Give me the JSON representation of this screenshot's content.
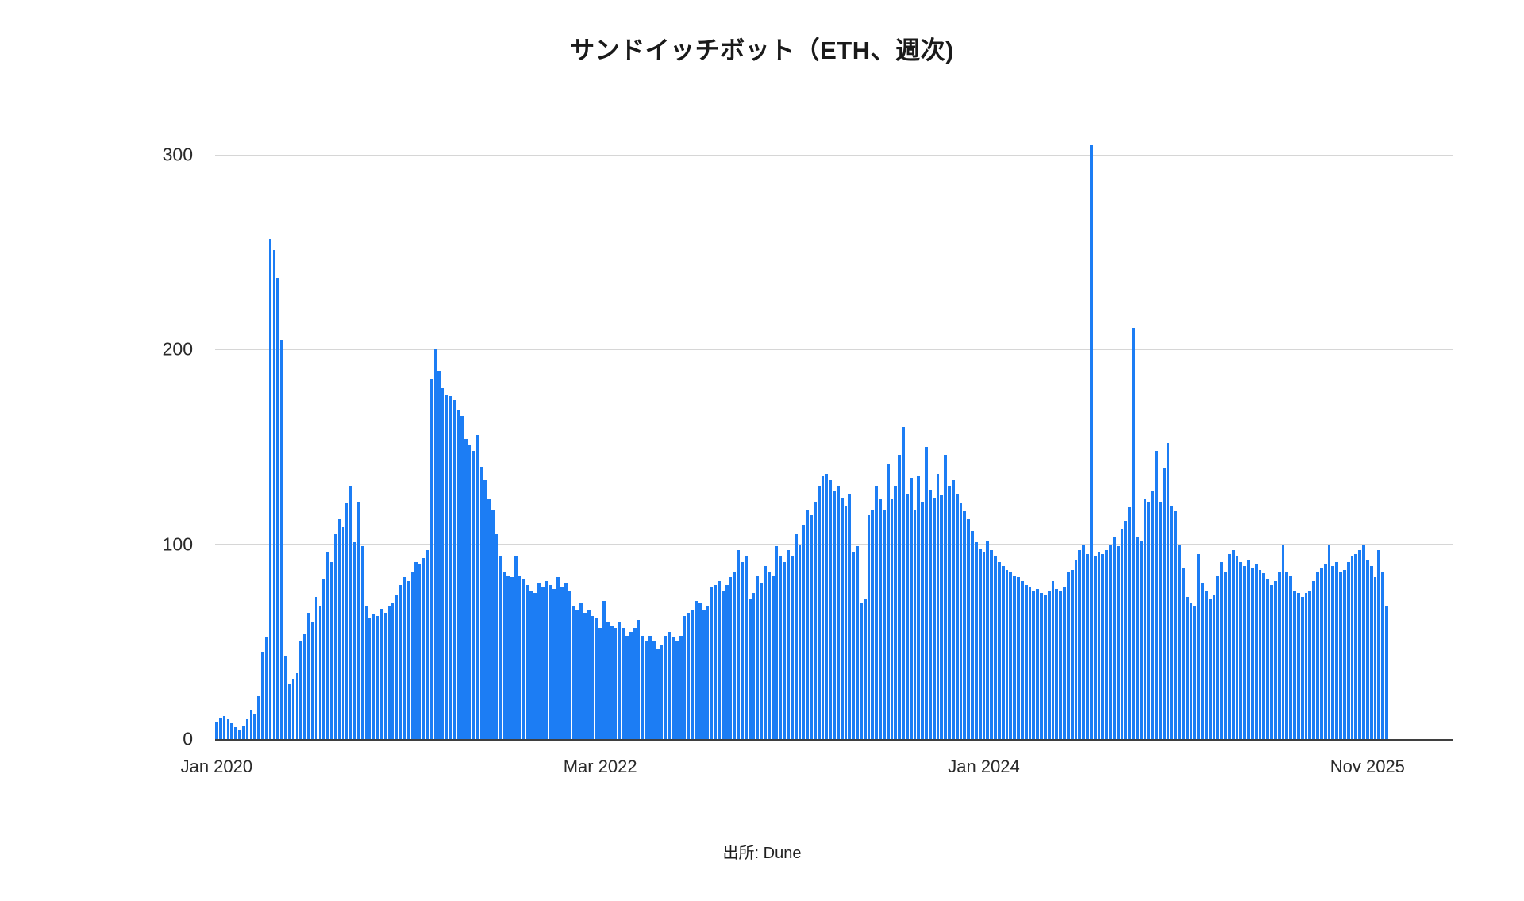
{
  "title": "サンドイッチボット（ETH、週次)",
  "source": "出所: Dune",
  "colors": {
    "bar": "#1c7df4",
    "grid": "#d6d6d6",
    "axis": "#3f3f3f",
    "text": "#1a1a1a"
  },
  "chart_data": {
    "type": "bar",
    "title": "サンドイッチボット（ETH、週次)",
    "xlabel": "",
    "ylabel": "",
    "ylim": [
      0,
      320
    ],
    "grid": "horizontal",
    "legend": "none",
    "y_ticks": [
      0,
      100,
      200,
      300
    ],
    "x_ticks": [
      {
        "label": "Jan 2020",
        "index": 0
      },
      {
        "label": "Mar 2022",
        "index": 100
      },
      {
        "label": "Jan 2024",
        "index": 200
      },
      {
        "label": "Nov 2025",
        "index": 300
      }
    ],
    "values": [
      9,
      11,
      12,
      10,
      8,
      6,
      5,
      7,
      10,
      15,
      13,
      22,
      45,
      52,
      257,
      251,
      237,
      205,
      43,
      28,
      31,
      34,
      50,
      54,
      65,
      60,
      73,
      68,
      82,
      96,
      91,
      105,
      113,
      109,
      121,
      130,
      101,
      122,
      99,
      68,
      62,
      64,
      63,
      67,
      65,
      68,
      70,
      74,
      79,
      83,
      81,
      86,
      91,
      90,
      93,
      97,
      185,
      200,
      189,
      180,
      177,
      176,
      174,
      169,
      166,
      154,
      151,
      148,
      156,
      140,
      133,
      123,
      118,
      105,
      94,
      86,
      84,
      83,
      94,
      84,
      82,
      79,
      76,
      75,
      80,
      78,
      81,
      79,
      77,
      83,
      78,
      80,
      76,
      68,
      66,
      70,
      65,
      66,
      63,
      62,
      57,
      71,
      60,
      58,
      57,
      60,
      57,
      53,
      55,
      57,
      61,
      53,
      50,
      53,
      50,
      46,
      48,
      53,
      55,
      52,
      50,
      53,
      63,
      65,
      66,
      71,
      70,
      66,
      68,
      78,
      79,
      81,
      76,
      79,
      83,
      86,
      97,
      91,
      94,
      72,
      75,
      84,
      80,
      89,
      86,
      84,
      99,
      94,
      91,
      97,
      94,
      105,
      100,
      110,
      118,
      115,
      122,
      130,
      135,
      136,
      133,
      127,
      130,
      124,
      120,
      126,
      96,
      99,
      70,
      72,
      115,
      118,
      130,
      123,
      118,
      141,
      123,
      130,
      146,
      160,
      126,
      134,
      118,
      135,
      122,
      150,
      128,
      124,
      136,
      125,
      146,
      130,
      133,
      126,
      121,
      117,
      113,
      107,
      101,
      98,
      96,
      102,
      97,
      94,
      91,
      89,
      87,
      86,
      84,
      83,
      81,
      79,
      78,
      76,
      77,
      75,
      74,
      76,
      81,
      77,
      76,
      78,
      86,
      87,
      92,
      97,
      100,
      95,
      305,
      94,
      96,
      95,
      97,
      100,
      104,
      99,
      108,
      112,
      119,
      211,
      104,
      102,
      123,
      122,
      127,
      148,
      122,
      139,
      152,
      120,
      117,
      100,
      88,
      73,
      70,
      68,
      95,
      80,
      76,
      72,
      74,
      84,
      91,
      86,
      95,
      97,
      94,
      91,
      89,
      92,
      88,
      90,
      87,
      85,
      82,
      79,
      81,
      86,
      100,
      86,
      84,
      76,
      75,
      73,
      75,
      76,
      81,
      86,
      88,
      90,
      100,
      89,
      91,
      86,
      87,
      91,
      94,
      95,
      97,
      100,
      92,
      89,
      83,
      97,
      86,
      68
    ]
  }
}
